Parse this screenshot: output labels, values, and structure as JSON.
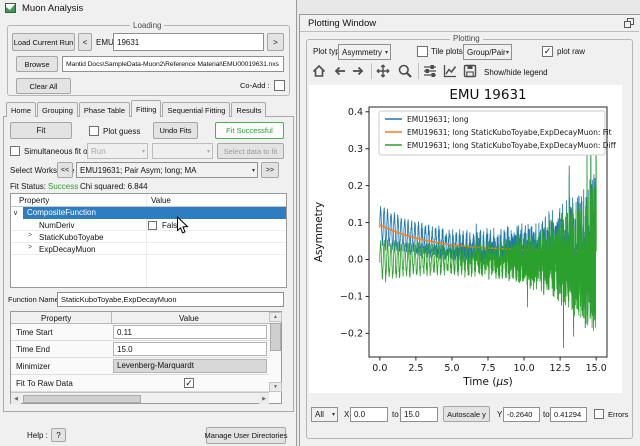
{
  "glyphs": {
    "check": "✓",
    "combo_arrow": "▾",
    "chevron_expanded": "∨",
    "chevron_collapsed": ">",
    "scroll_up": "▲",
    "scroll_down": "▼",
    "scroll_left": "◀",
    "scroll_right": "▶"
  },
  "main_window": {
    "title": "Muon Analysis",
    "loading_group": {
      "label": "Loading",
      "load_current_run": "Load Current Run",
      "prev": "<",
      "instrument": "EMU",
      "run_number": "19631",
      "next": ">",
      "browse": "Browse",
      "file_path": "Mantid Docs\\SampleData-Muon2\\Reference Material\\EMU00019631.nxs",
      "clear_all": "Clear All",
      "coadd_label": "Co-Add :"
    },
    "tabs": [
      "Home",
      "Grouping",
      "Phase Table",
      "Fitting",
      "Sequential Fitting",
      "Results"
    ],
    "active_tab": "Fitting",
    "fitting": {
      "fit_button": "Fit",
      "plot_guess": "Plot guess",
      "undo_fits": "Undo Fits",
      "fit_successful": "Fit Successful",
      "simultaneous": "Simultaneous fit over",
      "run_combo": "Run",
      "select_data": "Select data to fit",
      "select_workspace": "Select Workspace",
      "ws_prev": "<<",
      "workspace": "EMU19631; Pair Asym; long; MA",
      "ws_next": ">>",
      "status_label": "Fit Status:",
      "status_value": "Success",
      "status_color": "#2e9e2e",
      "chi_squared": "Chi squared: 6.844",
      "tree": {
        "headers": [
          "Property",
          "Value"
        ],
        "rows": [
          {
            "label": "CompositeFunction"
          },
          {
            "label": "NumDeriv",
            "value": "False"
          },
          {
            "label": "StaticKuboToyabe"
          },
          {
            "label": "ExpDecayMuon"
          }
        ]
      },
      "function_name_label": "Function Name",
      "function_name": "StaticKuboToyabe,ExpDecayMuon",
      "options": {
        "headers": [
          "Property",
          "Value"
        ],
        "rows": [
          {
            "prop": "Time Start",
            "value": "0.11"
          },
          {
            "prop": "Time End",
            "value": "15.0"
          },
          {
            "prop": "Minimizer",
            "value": "Levenberg-Marquardt"
          },
          {
            "prop": "Fit To Raw Data",
            "value": ""
          }
        ]
      },
      "help_label": "Help :",
      "help_button": "?",
      "manage_button": "Manage User Directories"
    }
  },
  "plot_window": {
    "title": "Plotting Window",
    "group_label": "Plotting",
    "plot_type_label": "Plot type :",
    "plot_type_value": "Asymmetry",
    "tile_label": "Tile plots by:",
    "tile_value": "Group/Pair",
    "plot_raw_label": "plot raw",
    "legend_toggle": "Show/hide legend",
    "controls": {
      "series_combo": "All",
      "x_label": "X",
      "x_min": "0.0",
      "to1": "to",
      "x_max": "15.0",
      "autoscale": "Autoscale y",
      "y_label": "Y",
      "y_min": "-0.2640",
      "to2": "to",
      "y_max": "0.41294",
      "errors_label": "Errors"
    }
  },
  "chart_data": {
    "type": "line",
    "title": "EMU 19631",
    "xlabel": "Time (μs)",
    "ylabel": "Asymmetry",
    "xlim": [
      -0.75,
      15.75
    ],
    "ylim": [
      -0.264,
      0.41294
    ],
    "x_data_range": [
      0,
      15
    ],
    "xticks": [
      0.0,
      2.5,
      5.0,
      7.5,
      10.0,
      12.5,
      15.0
    ],
    "yticks": [
      0.4,
      0.3,
      0.2,
      0.1,
      0.0,
      -0.1,
      -0.2
    ],
    "grid": false,
    "legend_position": "upper left",
    "series": [
      {
        "name": "EMU19631; long",
        "color": "#1f77b4",
        "role": "raw"
      },
      {
        "name": "EMU19631; long StaticKuboToyabe,ExpDecayMuon: Fit",
        "color": "#ff7f0e",
        "role": "fit"
      },
      {
        "name": "EMU19631; long StaticKuboToyabe,ExpDecayMuon: Diff",
        "color": "#2ca02c",
        "role": "diff"
      }
    ],
    "model": {
      "points": 1700,
      "seed": 7,
      "fit_baseline": 0.022,
      "fit_amp": 0.072,
      "fit_decay": 3.6,
      "osc_amp": 0.048,
      "osc_decay": 9,
      "osc_freq": 4.2,
      "noise_base": 0.004,
      "noise_amp": 0.0045,
      "noise_growth": 3.9,
      "spike_prob": 0.03,
      "spike_scale": 2.0,
      "end_spike": 0.39,
      "clamp": [
        -0.26,
        0.4
      ]
    }
  }
}
